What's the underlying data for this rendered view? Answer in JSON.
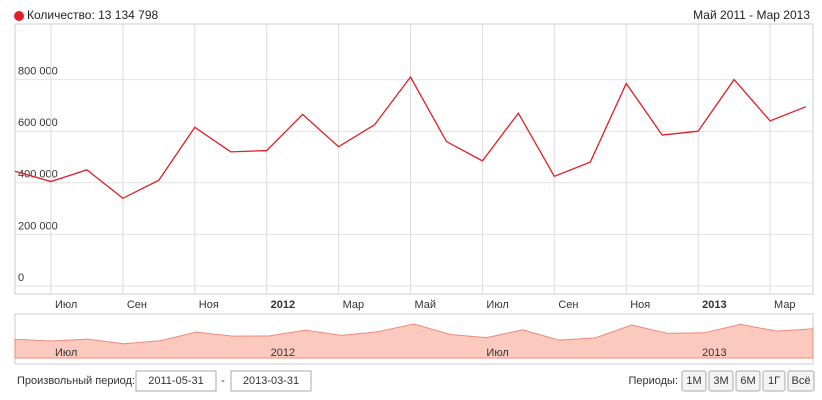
{
  "header": {
    "series_name": "Количество",
    "total": "13 134 798",
    "period": "Май 2011 - Мар 2013"
  },
  "chart_data": {
    "type": "line",
    "categories": [
      null,
      "Июл",
      null,
      "Сен",
      null,
      "Ноя",
      null,
      "2012",
      null,
      "Мар",
      null,
      "Май",
      null,
      "Июл",
      null,
      "Сен",
      null,
      "Ноя",
      null,
      "2013",
      null,
      "Мар",
      null
    ],
    "series": [
      {
        "name": "Количество",
        "color": "#e31e24",
        "values": [
          445000,
          405000,
          450000,
          340000,
          410000,
          615000,
          520000,
          525000,
          665000,
          540000,
          625000,
          810000,
          560000,
          485000,
          670000,
          425000,
          480000,
          785000,
          585000,
          600000,
          800000,
          640000,
          695000
        ]
      }
    ],
    "ylim": [
      0,
      1000000
    ],
    "yticks": [
      0,
      {
        "value": 200000,
        "label": "200 000"
      },
      {
        "value": 400000,
        "label": "400 000"
      },
      {
        "value": 600000,
        "label": "600 000"
      },
      {
        "value": 800000,
        "label": "800 000"
      }
    ],
    "grid": true
  },
  "controls": {
    "custom_period_label": "Произвольный период:",
    "date_from": "2011-05-31",
    "separator": "-",
    "date_to": "2013-03-31",
    "periods_label": "Периоды:",
    "periods": [
      "1М",
      "3М",
      "6М",
      "1Г",
      "Всё"
    ]
  }
}
